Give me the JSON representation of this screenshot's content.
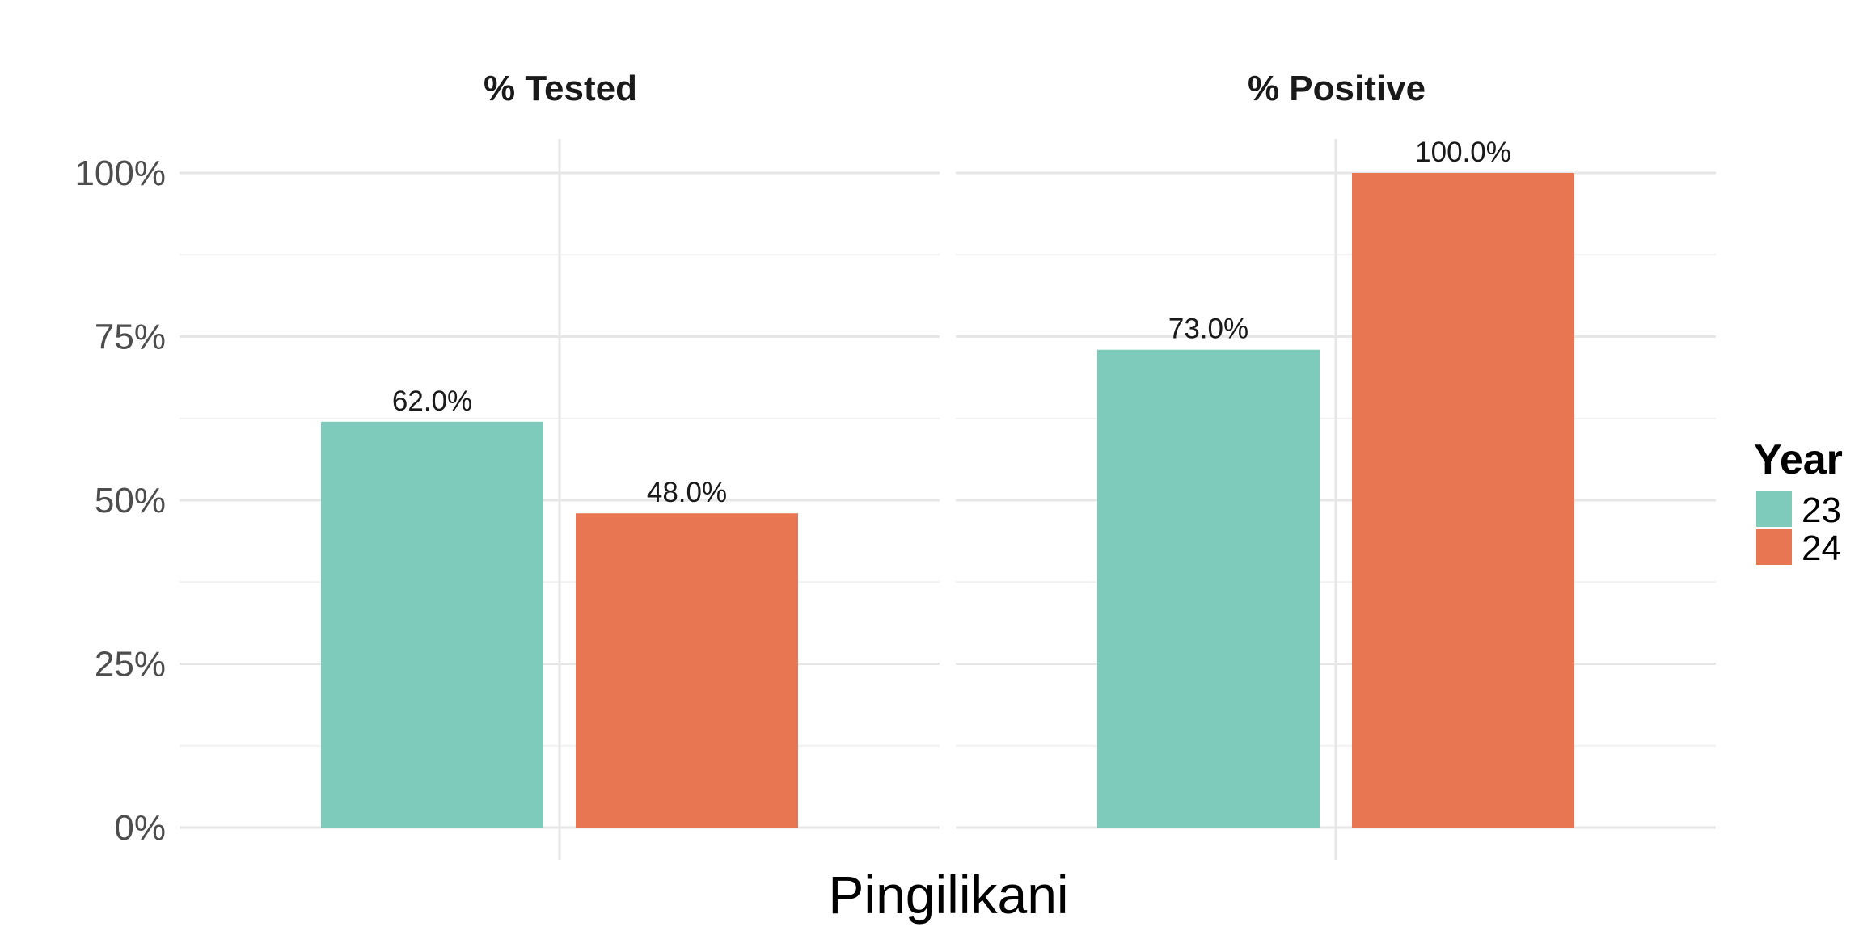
{
  "chart_data": {
    "type": "bar",
    "xlabel": "Pingilikani",
    "ylim": [
      0,
      100
    ],
    "y_ticks": [
      "0%",
      "25%",
      "50%",
      "75%",
      "100%"
    ],
    "y_tick_values": [
      0,
      25,
      50,
      75,
      100
    ],
    "grid": true,
    "legend": {
      "title": "Year",
      "position": "right",
      "entries": [
        "23",
        "24"
      ]
    },
    "colors": {
      "23": "#7ecbbb",
      "24": "#e97652"
    },
    "facets": [
      {
        "title": "% Tested",
        "series": [
          {
            "name": "23",
            "value": 62.0,
            "label": "62.0%"
          },
          {
            "name": "24",
            "value": 48.0,
            "label": "48.0%"
          }
        ]
      },
      {
        "title": "% Positive",
        "series": [
          {
            "name": "23",
            "value": 73.0,
            "label": "73.0%"
          },
          {
            "name": "24",
            "value": 100.0,
            "label": "100.0%"
          }
        ]
      }
    ]
  }
}
